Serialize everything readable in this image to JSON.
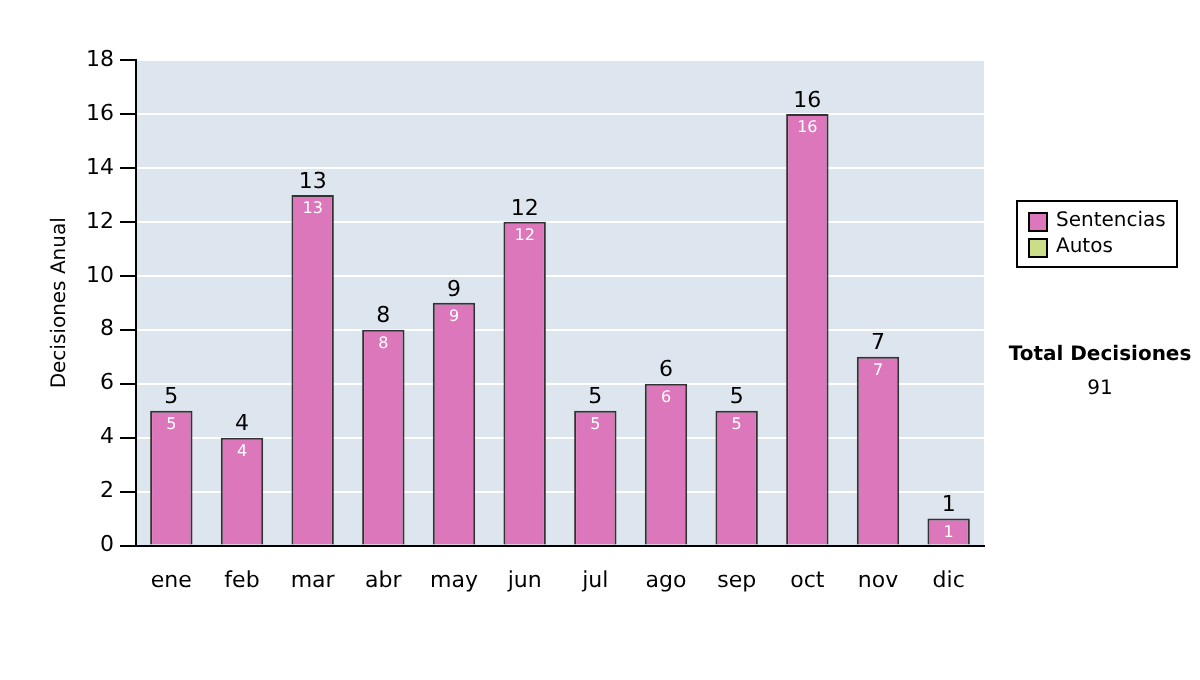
{
  "chart_data": {
    "type": "bar",
    "stacked": true,
    "ylabel": "Decisiones Anual",
    "categories": [
      "ene",
      "feb",
      "mar",
      "abr",
      "may",
      "jun",
      "jul",
      "ago",
      "sep",
      "oct",
      "nov",
      "dic"
    ],
    "series": [
      {
        "name": "Sentencias",
        "color": "#dd77bb",
        "values": [
          5,
          4,
          13,
          8,
          9,
          12,
          5,
          6,
          5,
          16,
          7,
          1
        ],
        "value_labels": [
          "5",
          "4",
          "13",
          "8",
          "9",
          "12",
          "5",
          "6",
          "5",
          "16",
          "7",
          "1"
        ]
      },
      {
        "name": "Autos",
        "color": "#ccdd88",
        "values": [
          null,
          null,
          null,
          null,
          null,
          null,
          null,
          null,
          null,
          null,
          null,
          null
        ]
      }
    ],
    "totals": [
      "5",
      "4",
      "13",
      "8",
      "9",
      "12",
      "5",
      "6",
      "5",
      "16",
      "7",
      "1"
    ],
    "ylim": [
      0,
      18
    ],
    "yticks": [
      0,
      2,
      4,
      6,
      8,
      10,
      12,
      14,
      16,
      18
    ],
    "grid": "y",
    "legend": "right",
    "annotations": [
      "Total Decisiones",
      "91"
    ]
  }
}
